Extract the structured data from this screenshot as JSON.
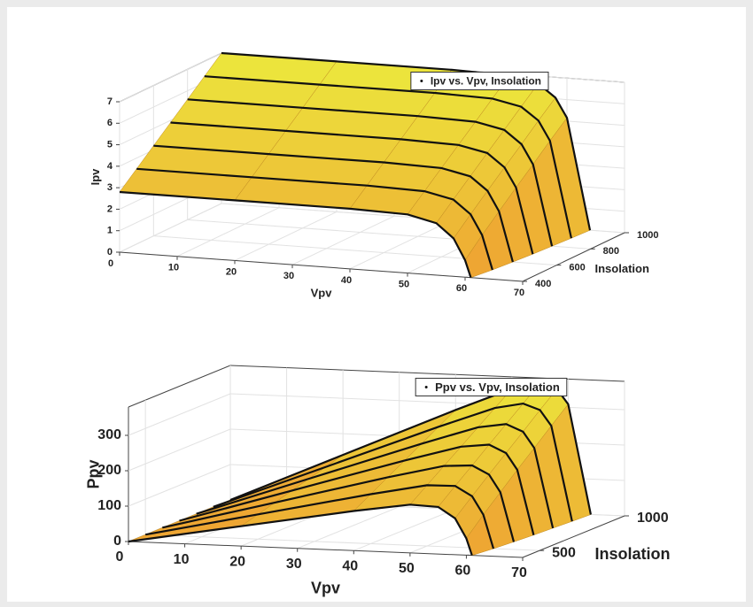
{
  "chart_data": [
    {
      "type": "surface3d",
      "legend": "Ipv vs. Vpv, Insolation",
      "xlabel": "Vpv",
      "ylabel": "Insolation",
      "zlabel": "Ipv",
      "xlim": [
        0,
        70
      ],
      "xticks": [
        0,
        10,
        20,
        30,
        40,
        50,
        60,
        70
      ],
      "ylim": [
        400,
        1000
      ],
      "yticks": [
        400,
        600,
        800,
        1000
      ],
      "zlim": [
        0,
        7
      ],
      "zticks": [
        0,
        1,
        2,
        3,
        4,
        5,
        6,
        7
      ],
      "grid": true,
      "curves": [
        {
          "insolation": 400,
          "x": [
            0,
            20,
            40,
            50,
            55,
            58,
            60,
            61
          ],
          "values": [
            2.8,
            2.8,
            2.8,
            2.73,
            2.42,
            1.77,
            0.79,
            0
          ]
        },
        {
          "insolation": 500,
          "x": [
            0,
            20,
            40,
            50,
            55,
            58,
            60,
            61.8
          ],
          "values": [
            3.5,
            3.5,
            3.5,
            3.43,
            3.14,
            2.51,
            1.58,
            0
          ]
        },
        {
          "insolation": 600,
          "x": [
            0,
            20,
            40,
            50,
            55,
            58,
            60,
            62.4
          ],
          "values": [
            4.2,
            4.2,
            4.2,
            4.13,
            3.84,
            3.23,
            2.31,
            0
          ]
        },
        {
          "insolation": 700,
          "x": [
            0,
            20,
            40,
            50,
            55,
            58,
            60,
            62.9
          ],
          "values": [
            4.9,
            4.9,
            4.9,
            4.83,
            4.55,
            3.94,
            3.04,
            0
          ]
        },
        {
          "insolation": 800,
          "x": [
            0,
            20,
            40,
            50,
            55,
            58,
            60,
            63.3
          ],
          "values": [
            5.6,
            5.6,
            5.6,
            5.53,
            5.25,
            4.64,
            3.74,
            0
          ]
        },
        {
          "insolation": 900,
          "x": [
            0,
            20,
            40,
            50,
            55,
            58,
            60,
            63.7
          ],
          "values": [
            6.3,
            6.3,
            6.3,
            6.23,
            5.95,
            5.36,
            4.46,
            0
          ]
        },
        {
          "insolation": 1000,
          "x": [
            0,
            20,
            40,
            50,
            55,
            58,
            60,
            64
          ],
          "values": [
            7,
            7,
            7,
            6.93,
            6.65,
            6.05,
            5.15,
            0
          ]
        }
      ]
    },
    {
      "type": "surface3d",
      "legend": "Ppv vs. Vpv, Insolation",
      "xlabel": "Vpv",
      "ylabel": "Insolation",
      "zlabel": "Ppv",
      "xlim": [
        0,
        70
      ],
      "xticks": [
        0,
        10,
        20,
        30,
        40,
        50,
        60,
        70
      ],
      "ylim": [
        400,
        1000
      ],
      "yticks": [
        500,
        1000
      ],
      "zlim": [
        0,
        380
      ],
      "zticks": [
        0,
        100,
        200,
        300
      ],
      "grid": true,
      "curves": [
        {
          "insolation": 400,
          "x": [
            0,
            20,
            40,
            50,
            55,
            58,
            60,
            61
          ],
          "values": [
            0,
            56,
            112,
            136.5,
            133.1,
            102.7,
            47.4,
            0
          ]
        },
        {
          "insolation": 500,
          "x": [
            0,
            20,
            40,
            50,
            55,
            58,
            60,
            61.8
          ],
          "values": [
            0,
            70,
            140,
            171.5,
            172.7,
            145.6,
            94.8,
            0
          ]
        },
        {
          "insolation": 600,
          "x": [
            0,
            20,
            40,
            50,
            55,
            58,
            60,
            62.4
          ],
          "values": [
            0,
            84,
            168,
            206.5,
            211.2,
            187.3,
            138.6,
            0
          ]
        },
        {
          "insolation": 700,
          "x": [
            0,
            20,
            40,
            50,
            55,
            58,
            60,
            62.9
          ],
          "values": [
            0,
            98,
            196,
            241.5,
            250.3,
            228.5,
            182.4,
            0
          ]
        },
        {
          "insolation": 800,
          "x": [
            0,
            20,
            40,
            50,
            55,
            58,
            60,
            63.3
          ],
          "values": [
            0,
            112,
            224,
            276.5,
            288.8,
            269.1,
            224.4,
            0
          ]
        },
        {
          "insolation": 900,
          "x": [
            0,
            20,
            40,
            50,
            55,
            58,
            60,
            63.7
          ],
          "values": [
            0,
            126,
            252,
            311.5,
            327.3,
            310.9,
            267.6,
            0
          ]
        },
        {
          "insolation": 1000,
          "x": [
            0,
            20,
            40,
            50,
            55,
            58,
            60,
            64
          ],
          "values": [
            0,
            140,
            280,
            346.5,
            365.8,
            350.9,
            309,
            0
          ]
        }
      ]
    }
  ]
}
